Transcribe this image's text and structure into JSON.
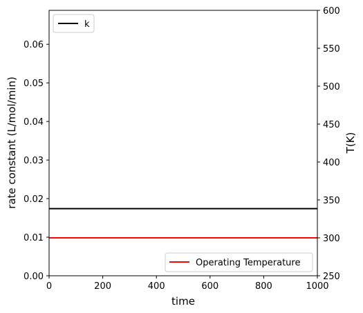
{
  "chart_data": {
    "type": "line",
    "x_axis": {
      "label": "time",
      "range": [
        0,
        1000
      ],
      "ticks": [
        "0",
        "200",
        "400",
        "600",
        "800",
        "1000"
      ],
      "tick_values": [
        0,
        200,
        400,
        600,
        800,
        1000
      ]
    },
    "y_left": {
      "label": "rate constant (L/mol/min)",
      "range": [
        0,
        0.0688
      ],
      "ticks": [
        "0.00",
        "0.01",
        "0.02",
        "0.03",
        "0.04",
        "0.05",
        "0.06"
      ],
      "tick_values": [
        0,
        0.01,
        0.02,
        0.03,
        0.04,
        0.05,
        0.06
      ]
    },
    "y_right": {
      "label": "T(K)",
      "range": [
        250,
        600
      ],
      "ticks": [
        "250",
        "300",
        "350",
        "400",
        "450",
        "500",
        "550",
        "600"
      ],
      "tick_values": [
        250,
        300,
        350,
        400,
        450,
        500,
        550,
        600
      ]
    },
    "series": [
      {
        "name": "k",
        "axis": "left",
        "color": "#000000",
        "x": [
          0,
          1000
        ],
        "y": [
          0.0174,
          0.0174
        ]
      },
      {
        "name": "Operating Temperature",
        "axis": "right",
        "color": "#ff0000",
        "x": [
          0,
          1000
        ],
        "y": [
          300,
          300
        ]
      }
    ],
    "legends": [
      {
        "placement": "upper-left",
        "entries": [
          "k"
        ]
      },
      {
        "placement": "lower-right",
        "entries": [
          "Operating Temperature"
        ]
      }
    ],
    "grid": false
  }
}
